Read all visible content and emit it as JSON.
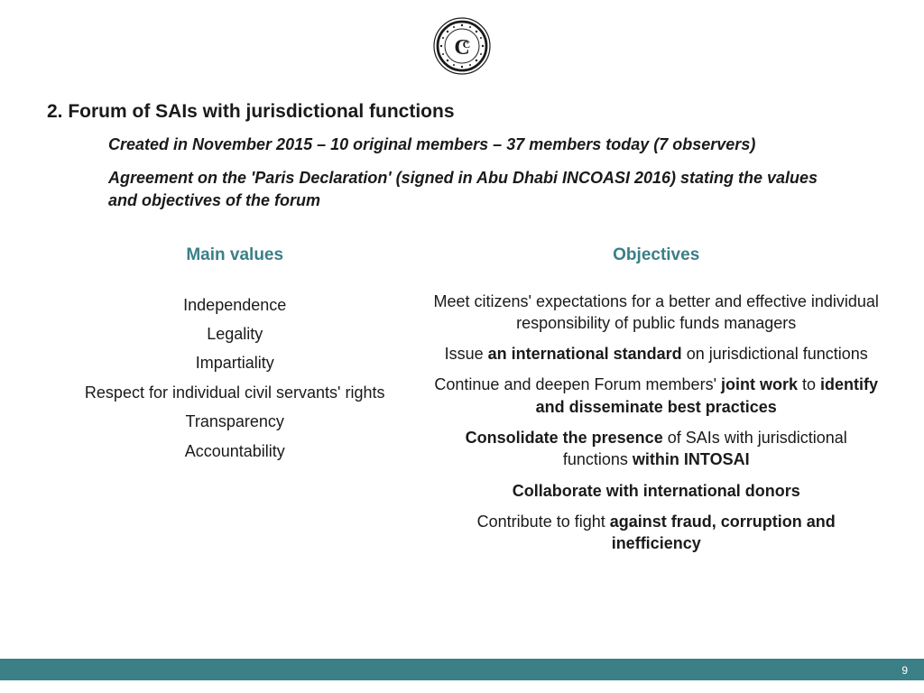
{
  "colors": {
    "teal": "#3b7f87",
    "text": "#1a1a1a",
    "white": "#ffffff",
    "logo_stroke": "#1a1a1a"
  },
  "heading": "2. Forum of SAIs with jurisdictional functions",
  "sub1": "Created in November 2015 – 10 original members – 37 members today (7 observers)",
  "sub2": "Agreement on the 'Paris Declaration' (signed in Abu Dhabi INCOASI 2016) stating the values and objectives of the forum",
  "left": {
    "title": "Main values",
    "items": [
      "Independence",
      "Legality",
      "Impartiality",
      "Respect for individual civil servants' rights",
      "Transparency",
      "Accountability"
    ]
  },
  "right": {
    "title": "Objectives",
    "items_html": [
      "Meet citizens' expectations for a better and effective individual responsibility of public funds managers",
      "Issue <b>an international standard</b> on jurisdictional functions",
      "Continue and deepen Forum members' <b>joint work</b> to <b>identify and disseminate best practices</b>",
      "<b>Consolidate the presence</b> of SAIs with jurisdictional functions <b>within INTOSAI</b>",
      "<b>Collaborate with international donors</b>",
      "Contribute to fight <b>against fraud, corruption and inefficiency</b>"
    ]
  },
  "page_number": "9"
}
